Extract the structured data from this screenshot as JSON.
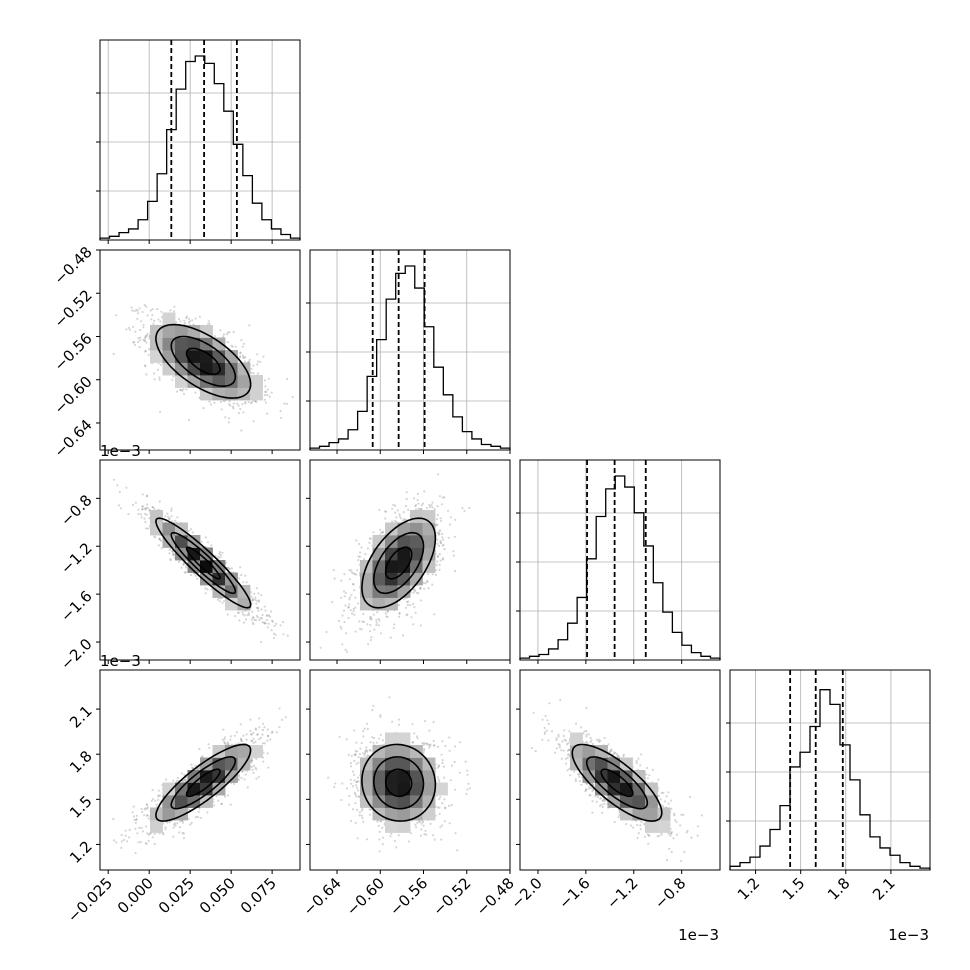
{
  "chart_data": {
    "type": "corner",
    "parameters": [
      {
        "range": [
          -0.03,
          0.092
        ],
        "ticks": [
          -0.025,
          0.0,
          0.025,
          0.05,
          0.075
        ],
        "tick_labels": [
          "−0.025",
          "0.000",
          "0.025",
          "0.050",
          "0.075"
        ],
        "offset_label": "",
        "quantiles": [
          0.0135,
          0.0335,
          0.0535
        ],
        "hist": [
          1,
          2,
          4,
          6,
          11,
          21,
          36,
          60,
          82,
          97,
          100,
          96,
          85,
          70,
          52,
          35,
          20,
          11,
          6,
          3,
          1
        ]
      },
      {
        "range": [
          -0.665,
          -0.48
        ],
        "ticks": [
          -0.64,
          -0.6,
          -0.56,
          -0.52,
          -0.48
        ],
        "tick_labels": [
          "−0.64",
          "−0.60",
          "−0.56",
          "−0.52",
          "−0.48"
        ],
        "offset_label": "",
        "quantiles": [
          -0.607,
          -0.583,
          -0.559
        ],
        "hist": [
          1,
          2,
          4,
          6,
          11,
          21,
          40,
          60,
          82,
          96,
          100,
          88,
          67,
          45,
          30,
          18,
          10,
          6,
          3,
          2,
          1
        ]
      },
      {
        "range": [
          -2.15,
          -0.48
        ],
        "ticks": [
          -2.0,
          -1.6,
          -1.2,
          -0.8
        ],
        "tick_labels": [
          "−2.0",
          "−1.6",
          "−1.2",
          "−0.8"
        ],
        "offset_label": "1e−3",
        "quantiles": [
          -1.59,
          -1.36,
          -1.1
        ],
        "hist": [
          1,
          2,
          3,
          6,
          11,
          20,
          34,
          55,
          78,
          93,
          100,
          94,
          80,
          62,
          42,
          26,
          15,
          8,
          4,
          2,
          1
        ]
      },
      {
        "range": [
          1.03,
          2.36
        ],
        "ticks": [
          1.2,
          1.5,
          1.8,
          2.1
        ],
        "tick_labels": [
          "1.2",
          "1.5",
          "1.8",
          "2.1"
        ],
        "offset_label": "1e−3",
        "quantiles": [
          1.43,
          1.6,
          1.78
        ],
        "hist": [
          2,
          4,
          7,
          13,
          22,
          35,
          56,
          64,
          78,
          98,
          90,
          68,
          49,
          30,
          18,
          12,
          8,
          4,
          2,
          1
        ]
      }
    ],
    "pairs": [
      {
        "row": 1,
        "col": 0,
        "mean": [
          0.033,
          -0.583
        ],
        "sd": [
          0.017,
          0.02
        ],
        "corr": -0.62
      },
      {
        "row": 2,
        "col": 0,
        "mean": [
          0.033,
          -1.34
        ],
        "sd": [
          0.017,
          0.22
        ],
        "corr": -0.93
      },
      {
        "row": 2,
        "col": 1,
        "mean": [
          -0.583,
          -1.34
        ],
        "sd": [
          0.02,
          0.22
        ],
        "corr": 0.55
      },
      {
        "row": 3,
        "col": 0,
        "mean": [
          0.033,
          1.61
        ],
        "sd": [
          0.017,
          0.15
        ],
        "corr": 0.85
      },
      {
        "row": 3,
        "col": 1,
        "mean": [
          -0.583,
          1.61
        ],
        "sd": [
          0.02,
          0.15
        ],
        "corr": -0.05
      },
      {
        "row": 3,
        "col": 2,
        "mean": [
          -1.34,
          1.61
        ],
        "sd": [
          0.22,
          0.15
        ],
        "corr": -0.78
      }
    ],
    "grid": true,
    "axis_labels": []
  }
}
